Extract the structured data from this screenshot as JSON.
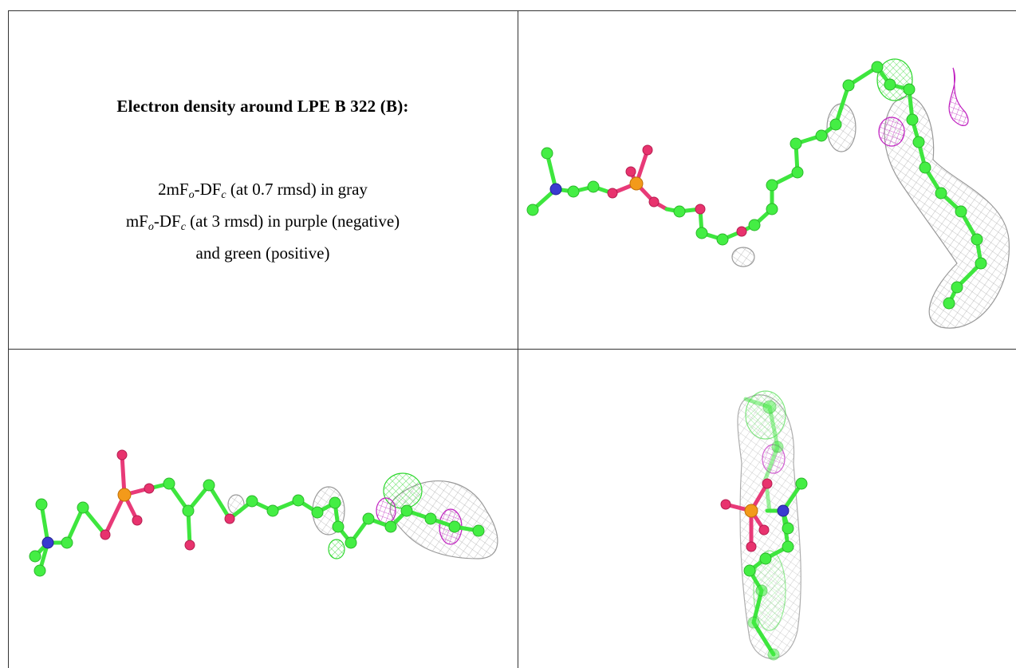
{
  "caption": {
    "title": "Electron density around LPE B 322 (B):",
    "lines": [
      [
        "2mF",
        "o",
        "-DF",
        "c",
        " (at 0.7 rmsd) in gray"
      ],
      [
        "mF",
        "o",
        "-DF",
        "c",
        " (at 3 rmsd) in purple (negative)"
      ],
      [
        "and green (positive)"
      ]
    ]
  }
}
